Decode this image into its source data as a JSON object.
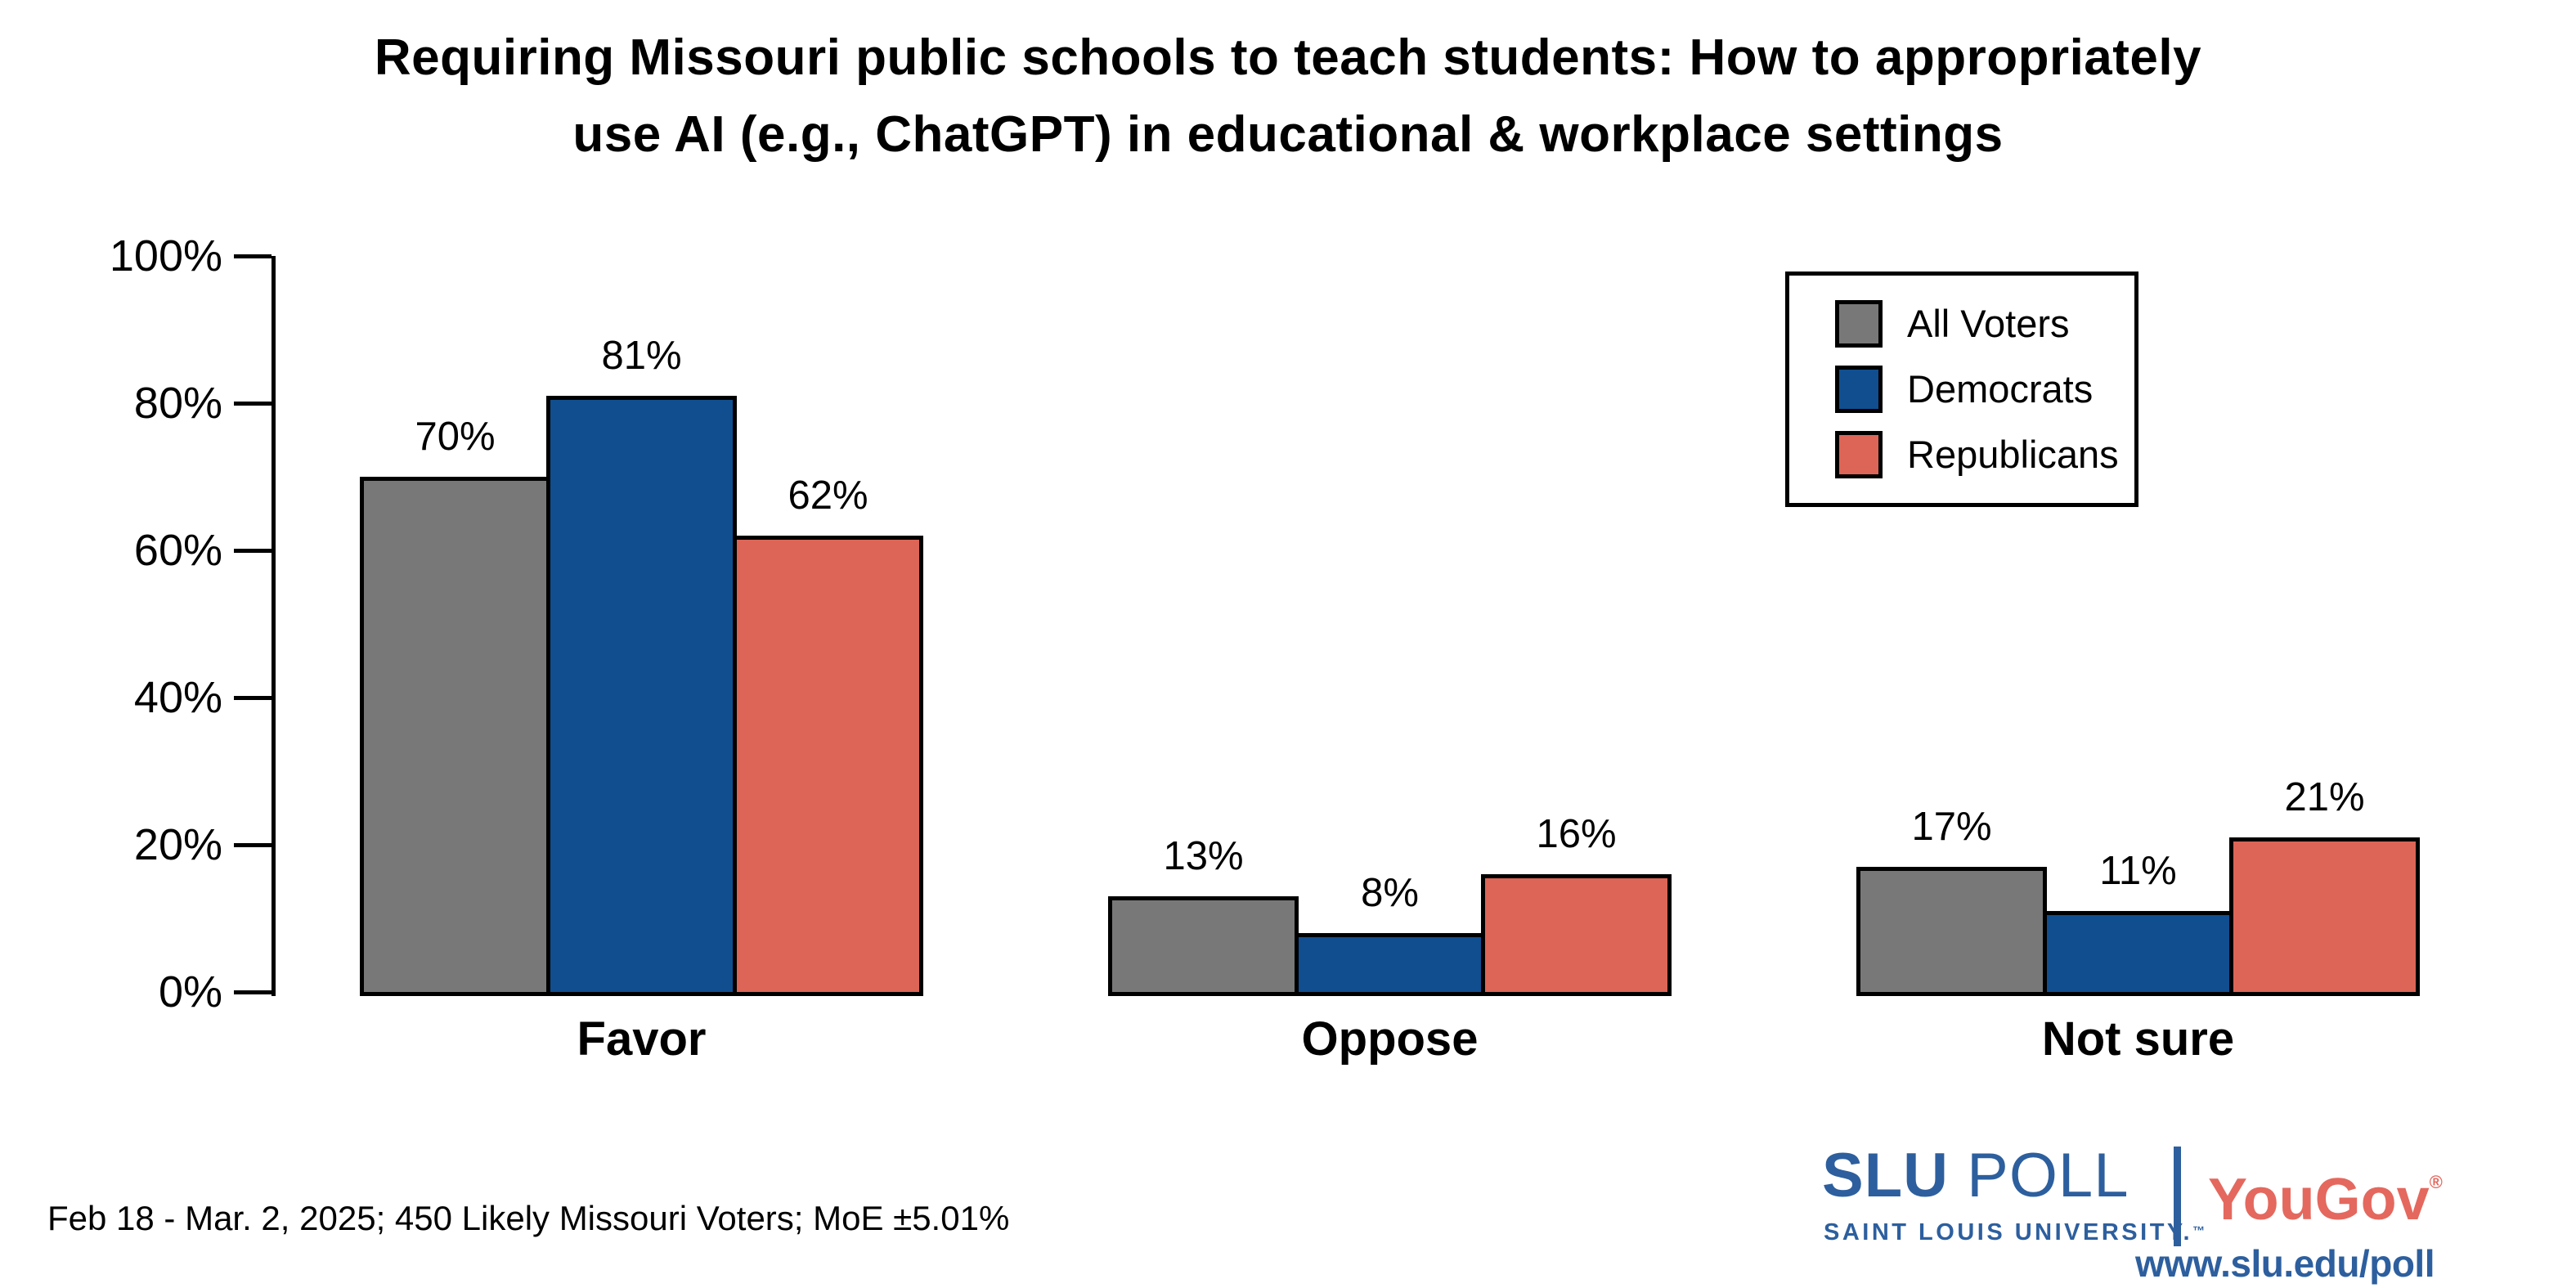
{
  "title": {
    "line1": "Requiring Missouri public schools to teach students: How to appropriately",
    "line2": "use AI (e.g., ChatGPT) in educational & workplace settings"
  },
  "chart_data": {
    "type": "bar",
    "categories": [
      "Favor",
      "Oppose",
      "Not sure"
    ],
    "series": [
      {
        "name": "All Voters",
        "color": "#787878",
        "values": [
          70,
          13,
          17
        ]
      },
      {
        "name": "Democrats",
        "color": "#104E90",
        "values": [
          81,
          8,
          11
        ]
      },
      {
        "name": "Republicans",
        "color": "#DC6557",
        "values": [
          62,
          16,
          21
        ]
      }
    ],
    "value_labels": [
      [
        "70%",
        "13%",
        "17%"
      ],
      [
        "81%",
        "8%",
        "11%"
      ],
      [
        "62%",
        "16%",
        "21%"
      ]
    ],
    "value_suffix": "%",
    "title": "Requiring Missouri public schools to teach students: How to appropriately use AI (e.g., ChatGPT) in educational & workplace settings",
    "xlabel": "",
    "ylabel": "",
    "ylim": [
      0,
      100
    ],
    "y_tick_values": [
      0,
      20,
      40,
      60,
      80,
      100
    ],
    "y_ticks": [
      "0%",
      "20%",
      "40%",
      "60%",
      "80%",
      "100%"
    ],
    "grid": false,
    "legend_position": "top-right",
    "bar_edge_color": "#000000"
  },
  "footer": {
    "source_note": "Feb 18 - Mar. 2, 2025; 450 Likely Missouri Voters; MoE ±5.01%"
  },
  "branding": {
    "slu": "SLU",
    "poll": "POLL",
    "university": "SAINT LOUIS UNIVERSITY.",
    "university_tm": "™",
    "yougov": "YouGov",
    "yougov_reg": "®",
    "url": "www.slu.edu/poll",
    "slu_blue": "#2D5F9E",
    "yougov_coral": "#E4685E"
  }
}
